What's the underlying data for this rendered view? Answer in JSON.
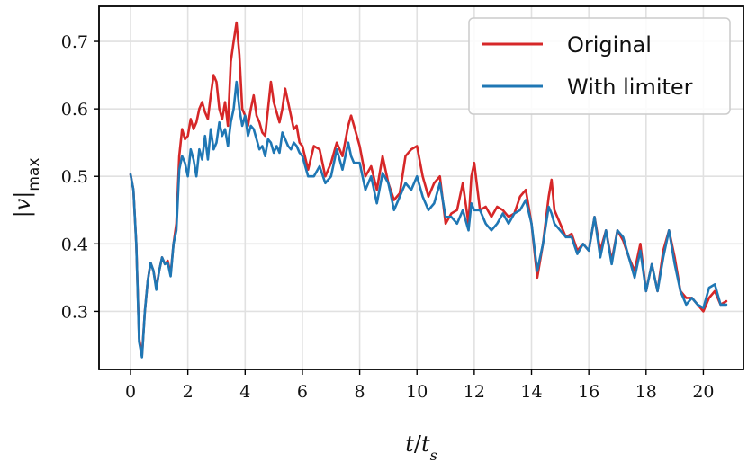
{
  "chart_data": {
    "type": "line",
    "title": "",
    "xlabel": "t/t_s",
    "ylabel": "|v|_max",
    "xlim": [
      -1.1,
      21.4
    ],
    "ylim": [
      0.214,
      0.752
    ],
    "xticks": [
      0,
      2,
      4,
      6,
      8,
      10,
      12,
      14,
      16,
      18,
      20
    ],
    "yticks": [
      0.3,
      0.4,
      0.5,
      0.6,
      0.7
    ],
    "xtick_labels": [
      "0",
      "2",
      "4",
      "6",
      "8",
      "10",
      "12",
      "14",
      "16",
      "18",
      "20"
    ],
    "ytick_labels": [
      "0.3",
      "0.4",
      "0.5",
      "0.6",
      "0.7"
    ],
    "grid": true,
    "legend_position": "top-right",
    "series": [
      {
        "name": "Original",
        "color": "#d62728",
        "x": [
          0,
          0.1,
          0.2,
          0.3,
          0.4,
          0.5,
          0.6,
          0.7,
          0.8,
          0.9,
          1.0,
          1.1,
          1.2,
          1.3,
          1.4,
          1.5,
          1.6,
          1.7,
          1.8,
          1.9,
          2.0,
          2.1,
          2.2,
          2.3,
          2.4,
          2.5,
          2.6,
          2.7,
          2.8,
          2.9,
          3.0,
          3.1,
          3.2,
          3.3,
          3.4,
          3.5,
          3.6,
          3.7,
          3.8,
          3.9,
          4.0,
          4.1,
          4.2,
          4.3,
          4.4,
          4.5,
          4.6,
          4.7,
          4.8,
          4.9,
          5.0,
          5.1,
          5.2,
          5.3,
          5.4,
          5.5,
          5.6,
          5.7,
          5.8,
          5.9,
          6.0,
          6.2,
          6.4,
          6.6,
          6.8,
          7.0,
          7.2,
          7.4,
          7.6,
          7.7,
          7.8,
          8.0,
          8.2,
          8.4,
          8.6,
          8.8,
          9.0,
          9.2,
          9.4,
          9.6,
          9.8,
          10.0,
          10.2,
          10.4,
          10.6,
          10.8,
          11.0,
          11.2,
          11.4,
          11.6,
          11.8,
          11.9,
          12.0,
          12.2,
          12.4,
          12.6,
          12.8,
          13.0,
          13.2,
          13.4,
          13.6,
          13.8,
          14.0,
          14.2,
          14.4,
          14.6,
          14.7,
          14.8,
          15.0,
          15.2,
          15.4,
          15.6,
          15.8,
          16.0,
          16.2,
          16.4,
          16.6,
          16.8,
          17.0,
          17.2,
          17.4,
          17.6,
          17.8,
          18.0,
          18.2,
          18.4,
          18.6,
          18.8,
          19.0,
          19.2,
          19.4,
          19.6,
          19.8,
          20.0,
          20.2,
          20.4,
          20.6,
          20.8
        ],
        "y": [
          0.503,
          0.48,
          0.4,
          0.26,
          0.235,
          0.3,
          0.345,
          0.372,
          0.36,
          0.335,
          0.36,
          0.38,
          0.37,
          0.375,
          0.355,
          0.4,
          0.43,
          0.53,
          0.57,
          0.555,
          0.56,
          0.585,
          0.57,
          0.58,
          0.6,
          0.61,
          0.595,
          0.585,
          0.62,
          0.65,
          0.64,
          0.6,
          0.585,
          0.61,
          0.575,
          0.67,
          0.7,
          0.728,
          0.68,
          0.6,
          0.59,
          0.575,
          0.6,
          0.62,
          0.59,
          0.58,
          0.565,
          0.56,
          0.6,
          0.64,
          0.61,
          0.595,
          0.58,
          0.6,
          0.63,
          0.61,
          0.59,
          0.57,
          0.575,
          0.55,
          0.545,
          0.51,
          0.545,
          0.54,
          0.5,
          0.52,
          0.55,
          0.53,
          0.575,
          0.59,
          0.575,
          0.545,
          0.5,
          0.515,
          0.48,
          0.53,
          0.49,
          0.465,
          0.475,
          0.53,
          0.54,
          0.545,
          0.5,
          0.47,
          0.49,
          0.5,
          0.43,
          0.445,
          0.45,
          0.49,
          0.43,
          0.5,
          0.52,
          0.45,
          0.455,
          0.44,
          0.455,
          0.45,
          0.44,
          0.445,
          0.47,
          0.48,
          0.43,
          0.35,
          0.4,
          0.47,
          0.495,
          0.45,
          0.43,
          0.41,
          0.415,
          0.39,
          0.4,
          0.39,
          0.44,
          0.39,
          0.42,
          0.375,
          0.42,
          0.405,
          0.38,
          0.36,
          0.4,
          0.33,
          0.37,
          0.33,
          0.39,
          0.42,
          0.38,
          0.33,
          0.32,
          0.32,
          0.31,
          0.3,
          0.32,
          0.33,
          0.31,
          0.315
        ]
      },
      {
        "name": "With limiter",
        "color": "#1f77b4",
        "x": [
          0,
          0.1,
          0.2,
          0.3,
          0.4,
          0.5,
          0.6,
          0.7,
          0.8,
          0.9,
          1.0,
          1.1,
          1.2,
          1.3,
          1.4,
          1.5,
          1.6,
          1.7,
          1.8,
          1.9,
          2.0,
          2.1,
          2.2,
          2.3,
          2.4,
          2.5,
          2.6,
          2.7,
          2.8,
          2.9,
          3.0,
          3.1,
          3.2,
          3.3,
          3.4,
          3.5,
          3.6,
          3.7,
          3.8,
          3.9,
          4.0,
          4.1,
          4.2,
          4.3,
          4.4,
          4.5,
          4.6,
          4.7,
          4.8,
          4.9,
          5.0,
          5.1,
          5.2,
          5.3,
          5.4,
          5.5,
          5.6,
          5.7,
          5.8,
          5.9,
          6.0,
          6.2,
          6.4,
          6.6,
          6.8,
          7.0,
          7.2,
          7.4,
          7.6,
          7.7,
          7.8,
          8.0,
          8.2,
          8.4,
          8.6,
          8.8,
          9.0,
          9.2,
          9.4,
          9.6,
          9.8,
          10.0,
          10.2,
          10.4,
          10.6,
          10.8,
          11.0,
          11.2,
          11.4,
          11.6,
          11.8,
          11.9,
          12.0,
          12.2,
          12.4,
          12.6,
          12.8,
          13.0,
          13.2,
          13.4,
          13.6,
          13.8,
          14.0,
          14.2,
          14.4,
          14.6,
          14.7,
          14.8,
          15.0,
          15.2,
          15.4,
          15.6,
          15.8,
          16.0,
          16.2,
          16.4,
          16.6,
          16.8,
          17.0,
          17.2,
          17.4,
          17.6,
          17.8,
          18.0,
          18.2,
          18.4,
          18.6,
          18.8,
          19.0,
          19.2,
          19.4,
          19.6,
          19.8,
          20.0,
          20.2,
          20.4,
          20.6,
          20.8
        ],
        "y": [
          0.503,
          0.48,
          0.4,
          0.255,
          0.232,
          0.3,
          0.345,
          0.372,
          0.36,
          0.332,
          0.36,
          0.38,
          0.37,
          0.372,
          0.352,
          0.4,
          0.42,
          0.51,
          0.53,
          0.52,
          0.5,
          0.54,
          0.525,
          0.5,
          0.54,
          0.525,
          0.56,
          0.525,
          0.57,
          0.54,
          0.55,
          0.58,
          0.56,
          0.57,
          0.545,
          0.58,
          0.6,
          0.64,
          0.6,
          0.575,
          0.59,
          0.56,
          0.575,
          0.57,
          0.555,
          0.54,
          0.545,
          0.53,
          0.555,
          0.55,
          0.535,
          0.545,
          0.535,
          0.565,
          0.555,
          0.545,
          0.54,
          0.55,
          0.545,
          0.535,
          0.53,
          0.5,
          0.5,
          0.515,
          0.49,
          0.5,
          0.54,
          0.51,
          0.55,
          0.53,
          0.52,
          0.52,
          0.48,
          0.5,
          0.46,
          0.505,
          0.49,
          0.45,
          0.47,
          0.49,
          0.48,
          0.5,
          0.47,
          0.45,
          0.46,
          0.49,
          0.44,
          0.44,
          0.43,
          0.45,
          0.42,
          0.46,
          0.45,
          0.45,
          0.43,
          0.42,
          0.43,
          0.445,
          0.43,
          0.445,
          0.45,
          0.465,
          0.43,
          0.36,
          0.4,
          0.455,
          0.445,
          0.43,
          0.42,
          0.41,
          0.41,
          0.385,
          0.4,
          0.39,
          0.44,
          0.38,
          0.42,
          0.37,
          0.42,
          0.41,
          0.38,
          0.35,
          0.39,
          0.33,
          0.37,
          0.33,
          0.38,
          0.42,
          0.37,
          0.33,
          0.31,
          0.32,
          0.31,
          0.305,
          0.335,
          0.34,
          0.31,
          0.31
        ]
      }
    ]
  }
}
